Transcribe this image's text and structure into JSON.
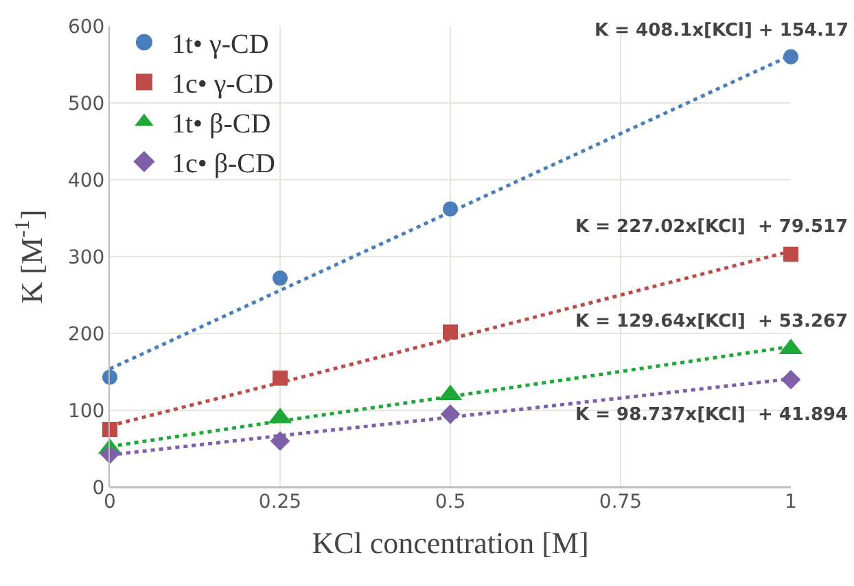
{
  "chart_data": {
    "type": "scatter",
    "xlabel": "KCl concentration [M]",
    "ylabel": "K [M$^{-1}$]",
    "x": [
      0,
      0.25,
      0.5,
      1
    ],
    "xlim": [
      0,
      1
    ],
    "xticks": [
      0,
      0.25,
      0.5,
      0.75,
      1
    ],
    "ylim": [
      0,
      600
    ],
    "yticks": [
      0,
      100,
      200,
      300,
      400,
      500,
      600
    ],
    "grid": true,
    "legend": "top left",
    "series": [
      {
        "name": "1t• γ-CD",
        "color": "#4a7ebb",
        "marker": "circle",
        "values": [
          143,
          272,
          362,
          560
        ]
      },
      {
        "name": "1c• γ-CD",
        "color": "#be4b48",
        "marker": "square",
        "values": [
          75,
          142,
          202,
          303
        ]
      },
      {
        "name": "1t• β-CD",
        "color": "#1fa839",
        "marker": "triangle",
        "values": [
          50,
          90,
          120,
          180
        ]
      },
      {
        "name": "1c• β-CD",
        "color": "#7f60a8",
        "marker": "diamond",
        "values": [
          43,
          60,
          95,
          140
        ]
      },
      {
        "type": "line",
        "color": "#4a7ebb",
        "marker": "none",
        "line_style": "dotted",
        "values": [
          154,
          256,
          358,
          562
        ]
      },
      {
        "type": "line",
        "color": "#be4b48",
        "marker": "none",
        "line_style": "dotted",
        "values": [
          80,
          136,
          193,
          307
        ]
      },
      {
        "type": "line",
        "color": "#1fa839",
        "marker": "none",
        "line_style": "dotted",
        "values": [
          53,
          86,
          118,
          183
        ]
      },
      {
        "type": "line",
        "color": "#7f60a8",
        "marker": "none",
        "line_style": "dotted",
        "values": [
          42,
          67,
          91,
          141
        ]
      }
    ],
    "annotations": [
      "K = 408.1x[KCl] + 154.17",
      "K = 227.02x[KCl]  + 79.517",
      "K = 129.64x[KCl]  + 53.267",
      "K = 98.737x[KCl]  + 41.894"
    ]
  }
}
